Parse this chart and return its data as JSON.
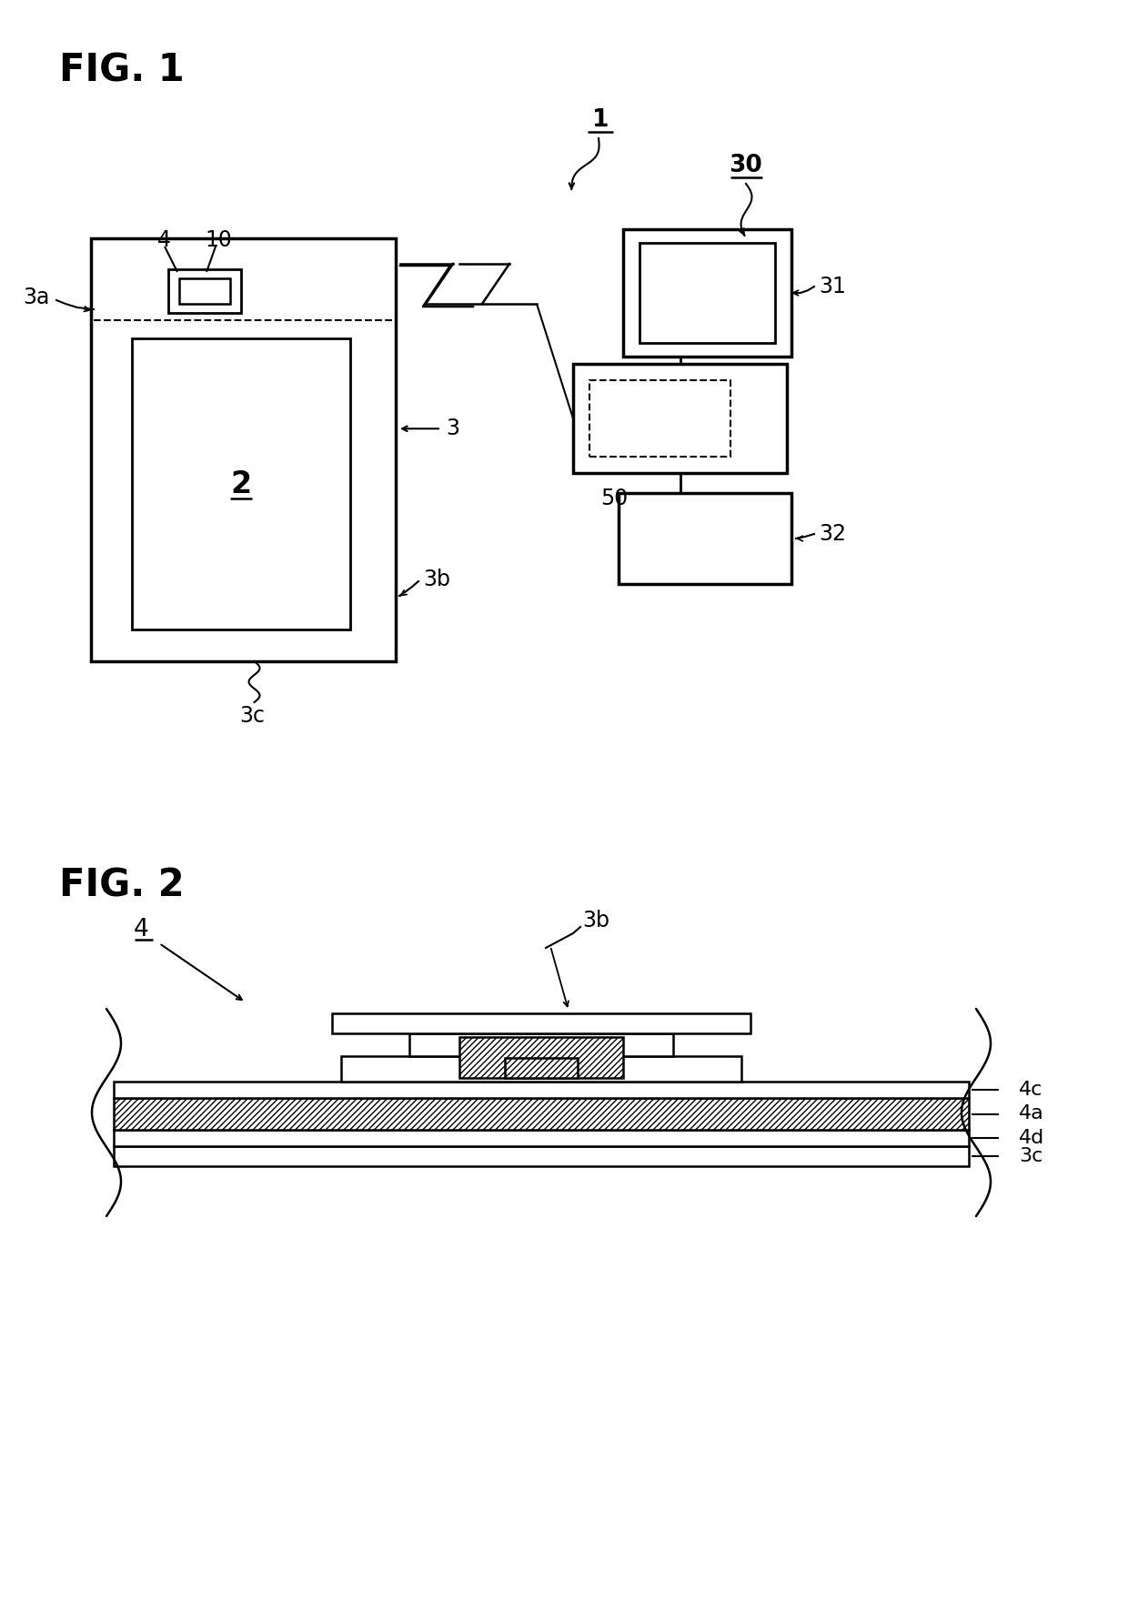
{
  "bg_color": "#ffffff",
  "fig1_title": "FIG. 1",
  "fig2_title": "FIG. 2",
  "label_1": "1",
  "label_30": "30",
  "label_31": "31",
  "label_32": "32",
  "label_50": "50",
  "label_2": "2",
  "label_3": "3",
  "label_3a": "3a",
  "label_3b_fig1": "3b",
  "label_3b_fig2": "3b",
  "label_3c": "3c",
  "label_4_fig1": "4",
  "label_4_fig2": "4",
  "label_10": "10",
  "label_4a": "4a",
  "label_4c": "4c",
  "label_4d": "4d",
  "line_color": "#000000",
  "lw": 2.0
}
